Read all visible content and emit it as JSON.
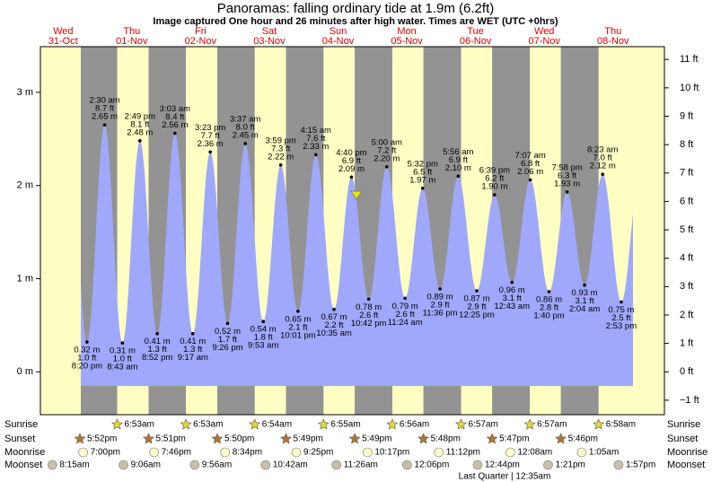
{
  "chart_data": {
    "type": "tide",
    "title": "Panoramas: falling  ordinary tide at 1.9m (6.2ft)",
    "subtitle": "Image captured One hour and 26 minutes after high water. Times are WET (UTC +0hrs)",
    "current_height": 1.9,
    "ylim": [
      -0.46,
      3.49
    ],
    "yticks": [
      {
        "value": 0,
        "label": "0 m"
      },
      {
        "value": 1,
        "label": "1 m"
      },
      {
        "value": 2,
        "label": "2 m"
      },
      {
        "value": 3,
        "label": "3 m"
      }
    ],
    "y2lim": [
      -1.51,
      11.45
    ],
    "y2ticks": [
      {
        "value": -1,
        "label": "−1 ft"
      },
      {
        "value": 0,
        "label": "0 ft"
      },
      {
        "value": 1,
        "label": "1 ft"
      },
      {
        "value": 2,
        "label": "2 ft"
      },
      {
        "value": 3,
        "label": "3 ft"
      },
      {
        "value": 4,
        "label": "4 ft"
      },
      {
        "value": 5,
        "label": "5 ft"
      },
      {
        "value": 6,
        "label": "6 ft"
      },
      {
        "value": 7,
        "label": "7 ft"
      },
      {
        "value": 8,
        "label": "8 ft"
      },
      {
        "value": 9,
        "label": "9 ft"
      },
      {
        "value": 10,
        "label": "10 ft"
      },
      {
        "value": 11,
        "label": "11 ft"
      }
    ],
    "days": [
      {
        "weekday": "Wed",
        "date": "31-Oct",
        "sunset": "5:52pm",
        "moonrise": "7:00pm",
        "moonset": "8:15am"
      },
      {
        "weekday": "Thu",
        "date": "01-Nov",
        "sunrise": "6:53am",
        "sunset": "5:51pm",
        "moonrise": "7:46pm",
        "moonset": "9:06am"
      },
      {
        "weekday": "Fri",
        "date": "02-Nov",
        "sunrise": "6:53am",
        "sunset": "5:50pm",
        "moonrise": "8:34pm",
        "moonset": "9:56am"
      },
      {
        "weekday": "Sat",
        "date": "03-Nov",
        "sunrise": "6:54am",
        "sunset": "5:49pm",
        "moonrise": "9:25pm",
        "moonset": "10:42am"
      },
      {
        "weekday": "Sun",
        "date": "04-Nov",
        "sunrise": "6:55am",
        "sunset": "5:49pm",
        "moonrise": "10:17pm",
        "moonset": "11:26am"
      },
      {
        "weekday": "Mon",
        "date": "05-Nov",
        "sunrise": "6:56am",
        "sunset": "5:48pm",
        "moonrise": "11:12pm",
        "moonset": "12:06pm"
      },
      {
        "weekday": "Tue",
        "date": "06-Nov",
        "sunrise": "6:57am",
        "sunset": "5:47pm",
        "moonset": "12:44pm"
      },
      {
        "weekday": "Wed",
        "date": "07-Nov",
        "sunrise": "6:57am",
        "sunset": "5:46pm",
        "moonrise": "12:08am",
        "moonset": "1:21pm"
      },
      {
        "weekday": "Thu",
        "date": "08-Nov",
        "sunrise": "6:58am",
        "moonrise": "1:05am",
        "moonset": "1:57pm"
      }
    ],
    "row_labels": {
      "sunrise": "Sunrise",
      "sunset": "Sunset",
      "moonrise": "Moonrise",
      "moonset": "Moonset"
    },
    "moon_phase": "Last Quarter | 12:35am",
    "extrema": [
      {
        "time": "8:20 pm",
        "height": 0.32,
        "height_label": "0.32 m",
        "feet": "1.0 ft"
      },
      {
        "time": "2:30 am",
        "height": 2.65,
        "height_label": "2.65 m",
        "feet": "8.7 ft"
      },
      {
        "time": "8:43 am",
        "height": 0.31,
        "height_label": "0.31 m",
        "feet": "1.0 ft"
      },
      {
        "time": "2:49 pm",
        "height": 2.48,
        "height_label": "2.48 m",
        "feet": "8.1 ft"
      },
      {
        "time": "8:52 pm",
        "height": 0.41,
        "height_label": "0.41 m",
        "feet": "1.3 ft"
      },
      {
        "time": "3:03 am",
        "height": 2.56,
        "height_label": "2.56 m",
        "feet": "8.4 ft"
      },
      {
        "time": "9:17 am",
        "height": 0.41,
        "height_label": "0.41 m",
        "feet": "1.3 ft"
      },
      {
        "time": "3:23 pm",
        "height": 2.36,
        "height_label": "2.36 m",
        "feet": "7.7 ft"
      },
      {
        "time": "9:26 pm",
        "height": 0.52,
        "height_label": "0.52 m",
        "feet": "1.7 ft"
      },
      {
        "time": "3:37 am",
        "height": 2.45,
        "height_label": "2.45 m",
        "feet": "8.0 ft"
      },
      {
        "time": "9:53 am",
        "height": 0.54,
        "height_label": "0.54 m",
        "feet": "1.8 ft"
      },
      {
        "time": "3:59 pm",
        "height": 2.22,
        "height_label": "2.22 m",
        "feet": "7.3 ft"
      },
      {
        "time": "10:01 pm",
        "height": 0.65,
        "height_label": "0.65 m",
        "feet": "2.1 ft"
      },
      {
        "time": "4:15 am",
        "height": 2.33,
        "height_label": "2.33 m",
        "feet": "7.6 ft"
      },
      {
        "time": "10:35 am",
        "height": 0.67,
        "height_label": "0.67 m",
        "feet": "2.2 ft"
      },
      {
        "time": "4:40 pm",
        "height": 2.09,
        "height_label": "2.09 m",
        "feet": "6.9 ft"
      },
      {
        "time": "10:42 pm",
        "height": 0.78,
        "height_label": "0.78 m",
        "feet": "2.6 ft"
      },
      {
        "time": "5:00 am",
        "height": 2.2,
        "height_label": "2.20 m",
        "feet": "7.2 ft"
      },
      {
        "time": "11:24 am",
        "height": 0.79,
        "height_label": "0.79 m",
        "feet": "2.6 ft"
      },
      {
        "time": "5:32 pm",
        "height": 1.97,
        "height_label": "1.97 m",
        "feet": "6.5 ft"
      },
      {
        "time": "11:36 pm",
        "height": 0.89,
        "height_label": "0.89 m",
        "feet": "2.9 ft"
      },
      {
        "time": "5:56 am",
        "height": 2.1,
        "height_label": "2.10 m",
        "feet": "6.9 ft"
      },
      {
        "time": "12:25 pm",
        "height": 0.87,
        "height_label": "0.87 m",
        "feet": "2.9 ft"
      },
      {
        "time": "6:39 pm",
        "height": 1.9,
        "height_label": "1.90 m",
        "feet": "6.2 ft"
      },
      {
        "time": "12:43 am",
        "height": 0.96,
        "height_label": "0.96 m",
        "feet": "3.1 ft"
      },
      {
        "time": "7:07 am",
        "height": 2.06,
        "height_label": "2.06 m",
        "feet": "6.8 ft"
      },
      {
        "time": "1:40 pm",
        "height": 0.86,
        "height_label": "0.86 m",
        "feet": "2.8 ft"
      },
      {
        "time": "7:58 pm",
        "height": 1.93,
        "height_label": "1.93 m",
        "feet": "6.3 ft"
      },
      {
        "time": "2:04 am",
        "height": 0.93,
        "height_label": "0.93 m",
        "feet": "3.1 ft"
      },
      {
        "time": "8:23 am",
        "height": 2.12,
        "height_label": "2.12 m",
        "feet": "7.0 ft"
      },
      {
        "time": "2:53 pm",
        "height": 0.75,
        "height_label": "0.75 m",
        "feet": "2.5 ft"
      }
    ]
  }
}
